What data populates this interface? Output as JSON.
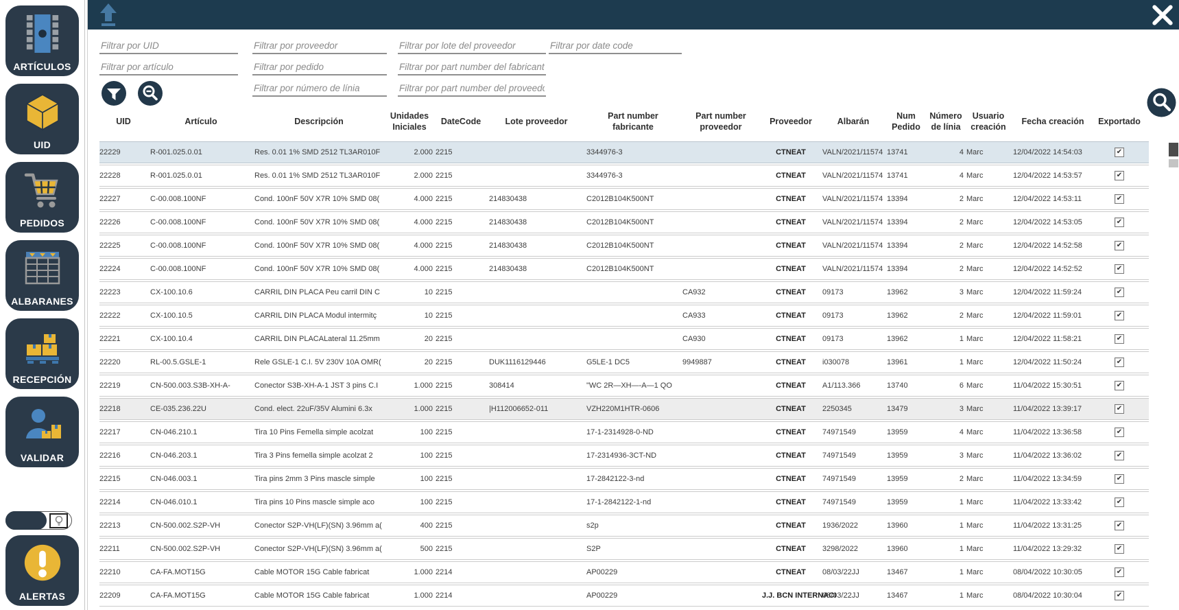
{
  "colors": {
    "navy_button": "#2b3a49",
    "topbar": "#1d3b4f",
    "accent_yellow": "#e9b636",
    "accent_blue": "#4a86c0",
    "steel_blue": "#4679a3",
    "row_selected": "#dce6ed",
    "row_shaded": "#ededed"
  },
  "sidebar": {
    "items": [
      {
        "label": "ARTÍCULOS",
        "icon": "chip-icon"
      },
      {
        "label": "UID",
        "icon": "cube-icon"
      },
      {
        "label": "PEDIDOS",
        "icon": "cart-icon"
      },
      {
        "label": "ALBARANES",
        "icon": "table-icon"
      },
      {
        "label": "RECEPCIÓN",
        "icon": "boxes-pallet-icon"
      },
      {
        "label": "VALIDAR",
        "icon": "person-box-icon"
      }
    ],
    "alerts": {
      "label": "ALERTAS",
      "icon": "alert-icon"
    },
    "toggle": {
      "icon": "lightbulb-icon"
    }
  },
  "toolbar": {
    "upload_icon": "upload-arrow-icon",
    "close_icon": "close-icon",
    "search_icon": "search-icon",
    "filter_icon": "funnel-icon",
    "clear_zoom_icon": "zoom-out-icon"
  },
  "filters": {
    "placeholders": [
      "Filtrar por UID",
      "Filtrar por proveedor",
      "Filtrar por lote del proveedor",
      "Filtrar por date code",
      "Filtrar por artículo",
      "Filtrar por pedido",
      "Filtrar por part number del fabricante",
      "Filtrar por número de línia",
      "Filtrar por part number del proveedor"
    ]
  },
  "table": {
    "columns": [
      "UID",
      "Artículo",
      "Descripción",
      "Unidades\nIniciales",
      "DateCode",
      "Lote proveedor",
      "Part number\nfabricante",
      "Part number\nproveedor",
      "Proveedor",
      "Albarán",
      "Num\nPedido",
      "Número\nde línia",
      "Usuario\ncreación",
      "Fecha creación",
      "Exportado"
    ],
    "selected_row": 0,
    "shaded_row": 11,
    "rows": [
      {
        "cells": [
          "22229",
          "R-001.025.0.01",
          "Res. 0.01 1% SMD 2512 TL3AR010F",
          "2.000",
          "2215",
          "",
          "3344976-3",
          "",
          "CTNEAT",
          "VALN/2021/11574",
          "13741",
          "4",
          "Marc",
          "12/04/2022 14:54:03"
        ],
        "exported": true
      },
      {
        "cells": [
          "22228",
          "R-001.025.0.01",
          "Res. 0.01 1% SMD 2512 TL3AR010F",
          "2.000",
          "2215",
          "",
          "3344976-3",
          "",
          "CTNEAT",
          "VALN/2021/11574",
          "13741",
          "4",
          "Marc",
          "12/04/2022 14:53:57"
        ],
        "exported": true
      },
      {
        "cells": [
          "22227",
          "C-00.008.100NF",
          "Cond. 100nF 50V X7R 10% SMD 08(",
          "4.000",
          "2215",
          "214830438",
          "C2012B104K500NT",
          "",
          "CTNEAT",
          "VALN/2021/11574",
          "13394",
          "2",
          "Marc",
          "12/04/2022 14:53:11"
        ],
        "exported": true
      },
      {
        "cells": [
          "22226",
          "C-00.008.100NF",
          "Cond. 100nF 50V X7R 10% SMD 08(",
          "4.000",
          "2215",
          "214830438",
          "C2012B104K500NT",
          "",
          "CTNEAT",
          "VALN/2021/11574",
          "13394",
          "2",
          "Marc",
          "12/04/2022 14:53:05"
        ],
        "exported": true
      },
      {
        "cells": [
          "22225",
          "C-00.008.100NF",
          "Cond. 100nF 50V X7R 10% SMD 08(",
          "4.000",
          "2215",
          "214830438",
          "C2012B104K500NT",
          "",
          "CTNEAT",
          "VALN/2021/11574",
          "13394",
          "2",
          "Marc",
          "12/04/2022 14:52:58"
        ],
        "exported": true
      },
      {
        "cells": [
          "22224",
          "C-00.008.100NF",
          "Cond. 100nF 50V X7R 10% SMD 08(",
          "4.000",
          "2215",
          "214830438",
          "C2012B104K500NT",
          "",
          "CTNEAT",
          "VALN/2021/11574",
          "13394",
          "2",
          "Marc",
          "12/04/2022 14:52:52"
        ],
        "exported": true
      },
      {
        "cells": [
          "22223",
          "CX-100.10.6",
          "CARRIL DIN PLACA Peu carril DIN C",
          "10",
          "2215",
          "",
          "",
          "CA932",
          "CTNEAT",
          "09173",
          "13962",
          "3",
          "Marc",
          "12/04/2022 11:59:24"
        ],
        "exported": true
      },
      {
        "cells": [
          "22222",
          "CX-100.10.5",
          "CARRIL DIN PLACA Modul intermitç",
          "10",
          "2215",
          "",
          "",
          "CA933",
          "CTNEAT",
          "09173",
          "13962",
          "2",
          "Marc",
          "12/04/2022 11:59:01"
        ],
        "exported": true
      },
      {
        "cells": [
          "22221",
          "CX-100.10.4",
          "CARRIL DIN PLACALateral 11.25mm",
          "20",
          "2215",
          "",
          "",
          "CA930",
          "CTNEAT",
          "09173",
          "13962",
          "1",
          "Marc",
          "12/04/2022 11:58:21"
        ],
        "exported": true
      },
      {
        "cells": [
          "22220",
          "RL-00.5.GSLE-1",
          "Rele GSLE-1 C.I. 5V 230V 10A OMR(",
          "20",
          "2215",
          "DUK1116129446",
          "G5LE-1  DC5",
          "9949887",
          "CTNEAT",
          "i030078",
          "13961",
          "1",
          "Marc",
          "12/04/2022 11:50:24"
        ],
        "exported": true
      },
      {
        "cells": [
          "22219",
          "CN-500.003.S3B-XH-A-",
          "Conector S3B-XH-A-1 JST 3 pins C.I",
          "1.000",
          "2215",
          "308414",
          "\"WC 2R—XH—-A—1 QO",
          "",
          "CTNEAT",
          "A1/113.366",
          "13740",
          "6",
          "Marc",
          "11/04/2022 15:30:51"
        ],
        "exported": true
      },
      {
        "cells": [
          "22218",
          "CE-035.236.22U",
          "Cond. elect. 22uF/35V Alumini 6.3x",
          "1.000",
          "2215",
          "|H112006652-011",
          "VZH220M1HTR-0606",
          "",
          "CTNEAT",
          "2250345",
          "13479",
          "3",
          "Marc",
          "11/04/2022 13:39:17"
        ],
        "exported": true
      },
      {
        "cells": [
          "22217",
          "CN-046.210.1",
          "Tira 10 Pins Femella simple acolzat",
          "100",
          "2215",
          "",
          "17-1-2314928-0-ND",
          "",
          "CTNEAT",
          "74971549",
          "13959",
          "4",
          "Marc",
          "11/04/2022 13:36:58"
        ],
        "exported": true
      },
      {
        "cells": [
          "22216",
          "CN-046.203.1",
          "Tira 3 Pins femella simple acolzat 2",
          "100",
          "2215",
          "",
          "17-2314936-3CT-ND",
          "",
          "CTNEAT",
          "74971549",
          "13959",
          "3",
          "Marc",
          "11/04/2022 13:36:02"
        ],
        "exported": true
      },
      {
        "cells": [
          "22215",
          "CN-046.003.1",
          "Tira pins 2mm 3 Pins mascle simple",
          "100",
          "2215",
          "",
          "17-2842122-3-nd",
          "",
          "CTNEAT",
          "74971549",
          "13959",
          "2",
          "Marc",
          "11/04/2022 13:34:59"
        ],
        "exported": true
      },
      {
        "cells": [
          "22214",
          "CN-046.010.1",
          "Tira pins 10 Pins mascle simple aco",
          "100",
          "2215",
          "",
          "17-1-2842122-1-nd",
          "",
          "CTNEAT",
          "74971549",
          "13959",
          "1",
          "Marc",
          "11/04/2022 13:33:42"
        ],
        "exported": true
      },
      {
        "cells": [
          "22213",
          "CN-500.002.S2P-VH",
          "Conector S2P-VH(LF)(SN) 3.96mm a(",
          "400",
          "2215",
          "",
          "s2p",
          "",
          "CTNEAT",
          "1936/2022",
          "13960",
          "1",
          "Marc",
          "11/04/2022 13:31:25"
        ],
        "exported": true
      },
      {
        "cells": [
          "22211",
          "CN-500.002.S2P-VH",
          "Conector S2P-VH(LF)(SN) 3.96mm a(",
          "500",
          "2215",
          "",
          "S2P",
          "",
          "CTNEAT",
          "3298/2022",
          "13960",
          "1",
          "Marc",
          "11/04/2022 13:29:32"
        ],
        "exported": true
      },
      {
        "cells": [
          "22210",
          "CA-FA.MOT15G",
          "Cable MOTOR 15G Cable fabricat",
          "1.000",
          "2214",
          "",
          "AP00229",
          "",
          "CTNEAT",
          "08/03/22JJ",
          "13467",
          "1",
          "Marc",
          "08/04/2022 10:30:05"
        ],
        "exported": true
      },
      {
        "cells": [
          "22209",
          "CA-FA.MOT15G",
          "Cable MOTOR 15G Cable fabricat",
          "1.000",
          "2214",
          "",
          "AP00229",
          "",
          "J.J. BCN INTERNACI",
          "08/03/22JJ",
          "13467",
          "1",
          "Marc",
          "08/04/2022 10:30:04"
        ],
        "exported": true
      }
    ]
  }
}
